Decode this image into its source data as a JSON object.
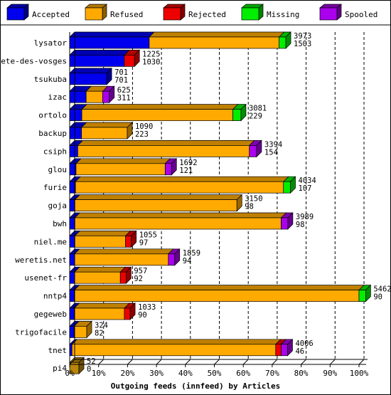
{
  "colors": {
    "accepted": "#0000ee",
    "refused": "#ffaa00",
    "rejected": "#ee0000",
    "missing": "#00ee00",
    "spooled": "#aa00ee",
    "pi4_bar": "#b8860b"
  },
  "chart_data": {
    "type": "bar",
    "orientation": "horizontal",
    "stacked": true,
    "title": "Outgoing feeds (innfeed) by Articles",
    "xlim": [
      0,
      100
    ],
    "x_ticks": [
      "0%",
      "10%",
      "20%",
      "30%",
      "40%",
      "50%",
      "60%",
      "70%",
      "80%",
      "90%",
      "100%"
    ],
    "grid": true,
    "legend_position": "top",
    "legend": [
      "Accepted",
      "Refused",
      "Rejected",
      "Missing",
      "Spooled"
    ],
    "categories": [
      "lysator",
      "bete-des-vosges",
      "tsukuba",
      "izac",
      "ortolo",
      "backup",
      "csiph",
      "glou",
      "furie",
      "goja",
      "bwh",
      "niel.me",
      "weretis.net",
      "usenet-fr",
      "nntp4",
      "gegeweb",
      "trigofacile",
      "tnet",
      "pi4"
    ],
    "offered_labels": [
      "3973",
      "1225",
      "701",
      "625",
      "3081",
      "1090",
      "3394",
      "1692",
      "4034",
      "3150",
      "3989",
      "1055",
      "1859",
      "957",
      "5462",
      "1033",
      "324",
      "4006",
      "52"
    ],
    "accepted_labels": [
      "1503",
      "1030",
      "701",
      "311",
      "229",
      "223",
      "154",
      "121",
      "107",
      "98",
      "98",
      "97",
      "94",
      "92",
      "90",
      "90",
      "82",
      "46",
      "0"
    ],
    "series": [
      {
        "name": "Accepted",
        "values": [
          27.5,
          18.9,
          12.8,
          5.7,
          4.2,
          4.1,
          2.8,
          2.2,
          2.0,
          1.8,
          1.8,
          1.8,
          1.7,
          1.7,
          1.6,
          1.6,
          1.5,
          0.8,
          0
        ]
      },
      {
        "name": "Refused",
        "values": [
          44.9,
          0,
          0,
          5.7,
          52.2,
          15.8,
          59.3,
          30.8,
          71.9,
          56.0,
          71.3,
          17.5,
          32.4,
          15.8,
          98.4,
          17.3,
          4.4,
          70.4,
          0
        ]
      },
      {
        "name": "Rejected",
        "values": [
          0,
          3.5,
          0,
          0,
          0,
          0,
          0,
          0,
          0,
          0,
          0,
          2.0,
          0,
          2.0,
          0,
          2.0,
          0,
          1.9,
          0
        ]
      },
      {
        "name": "Missing",
        "values": [
          2.3,
          0,
          0,
          0,
          2.8,
          0,
          0,
          0,
          2.4,
          0,
          0,
          0,
          0,
          0,
          2.3,
          0,
          0,
          0,
          0
        ]
      },
      {
        "name": "Spooled",
        "values": [
          0,
          0,
          0,
          2.3,
          0,
          0,
          2.5,
          2.2,
          0,
          0,
          2.3,
          0,
          2.2,
          0,
          0,
          0,
          0,
          2.2,
          0
        ]
      },
      {
        "name": "",
        "values": [
          0,
          0,
          0,
          0,
          0,
          0,
          0,
          0,
          0,
          0,
          0,
          0,
          0,
          0,
          0,
          0,
          0,
          0,
          3.2
        ]
      }
    ]
  }
}
